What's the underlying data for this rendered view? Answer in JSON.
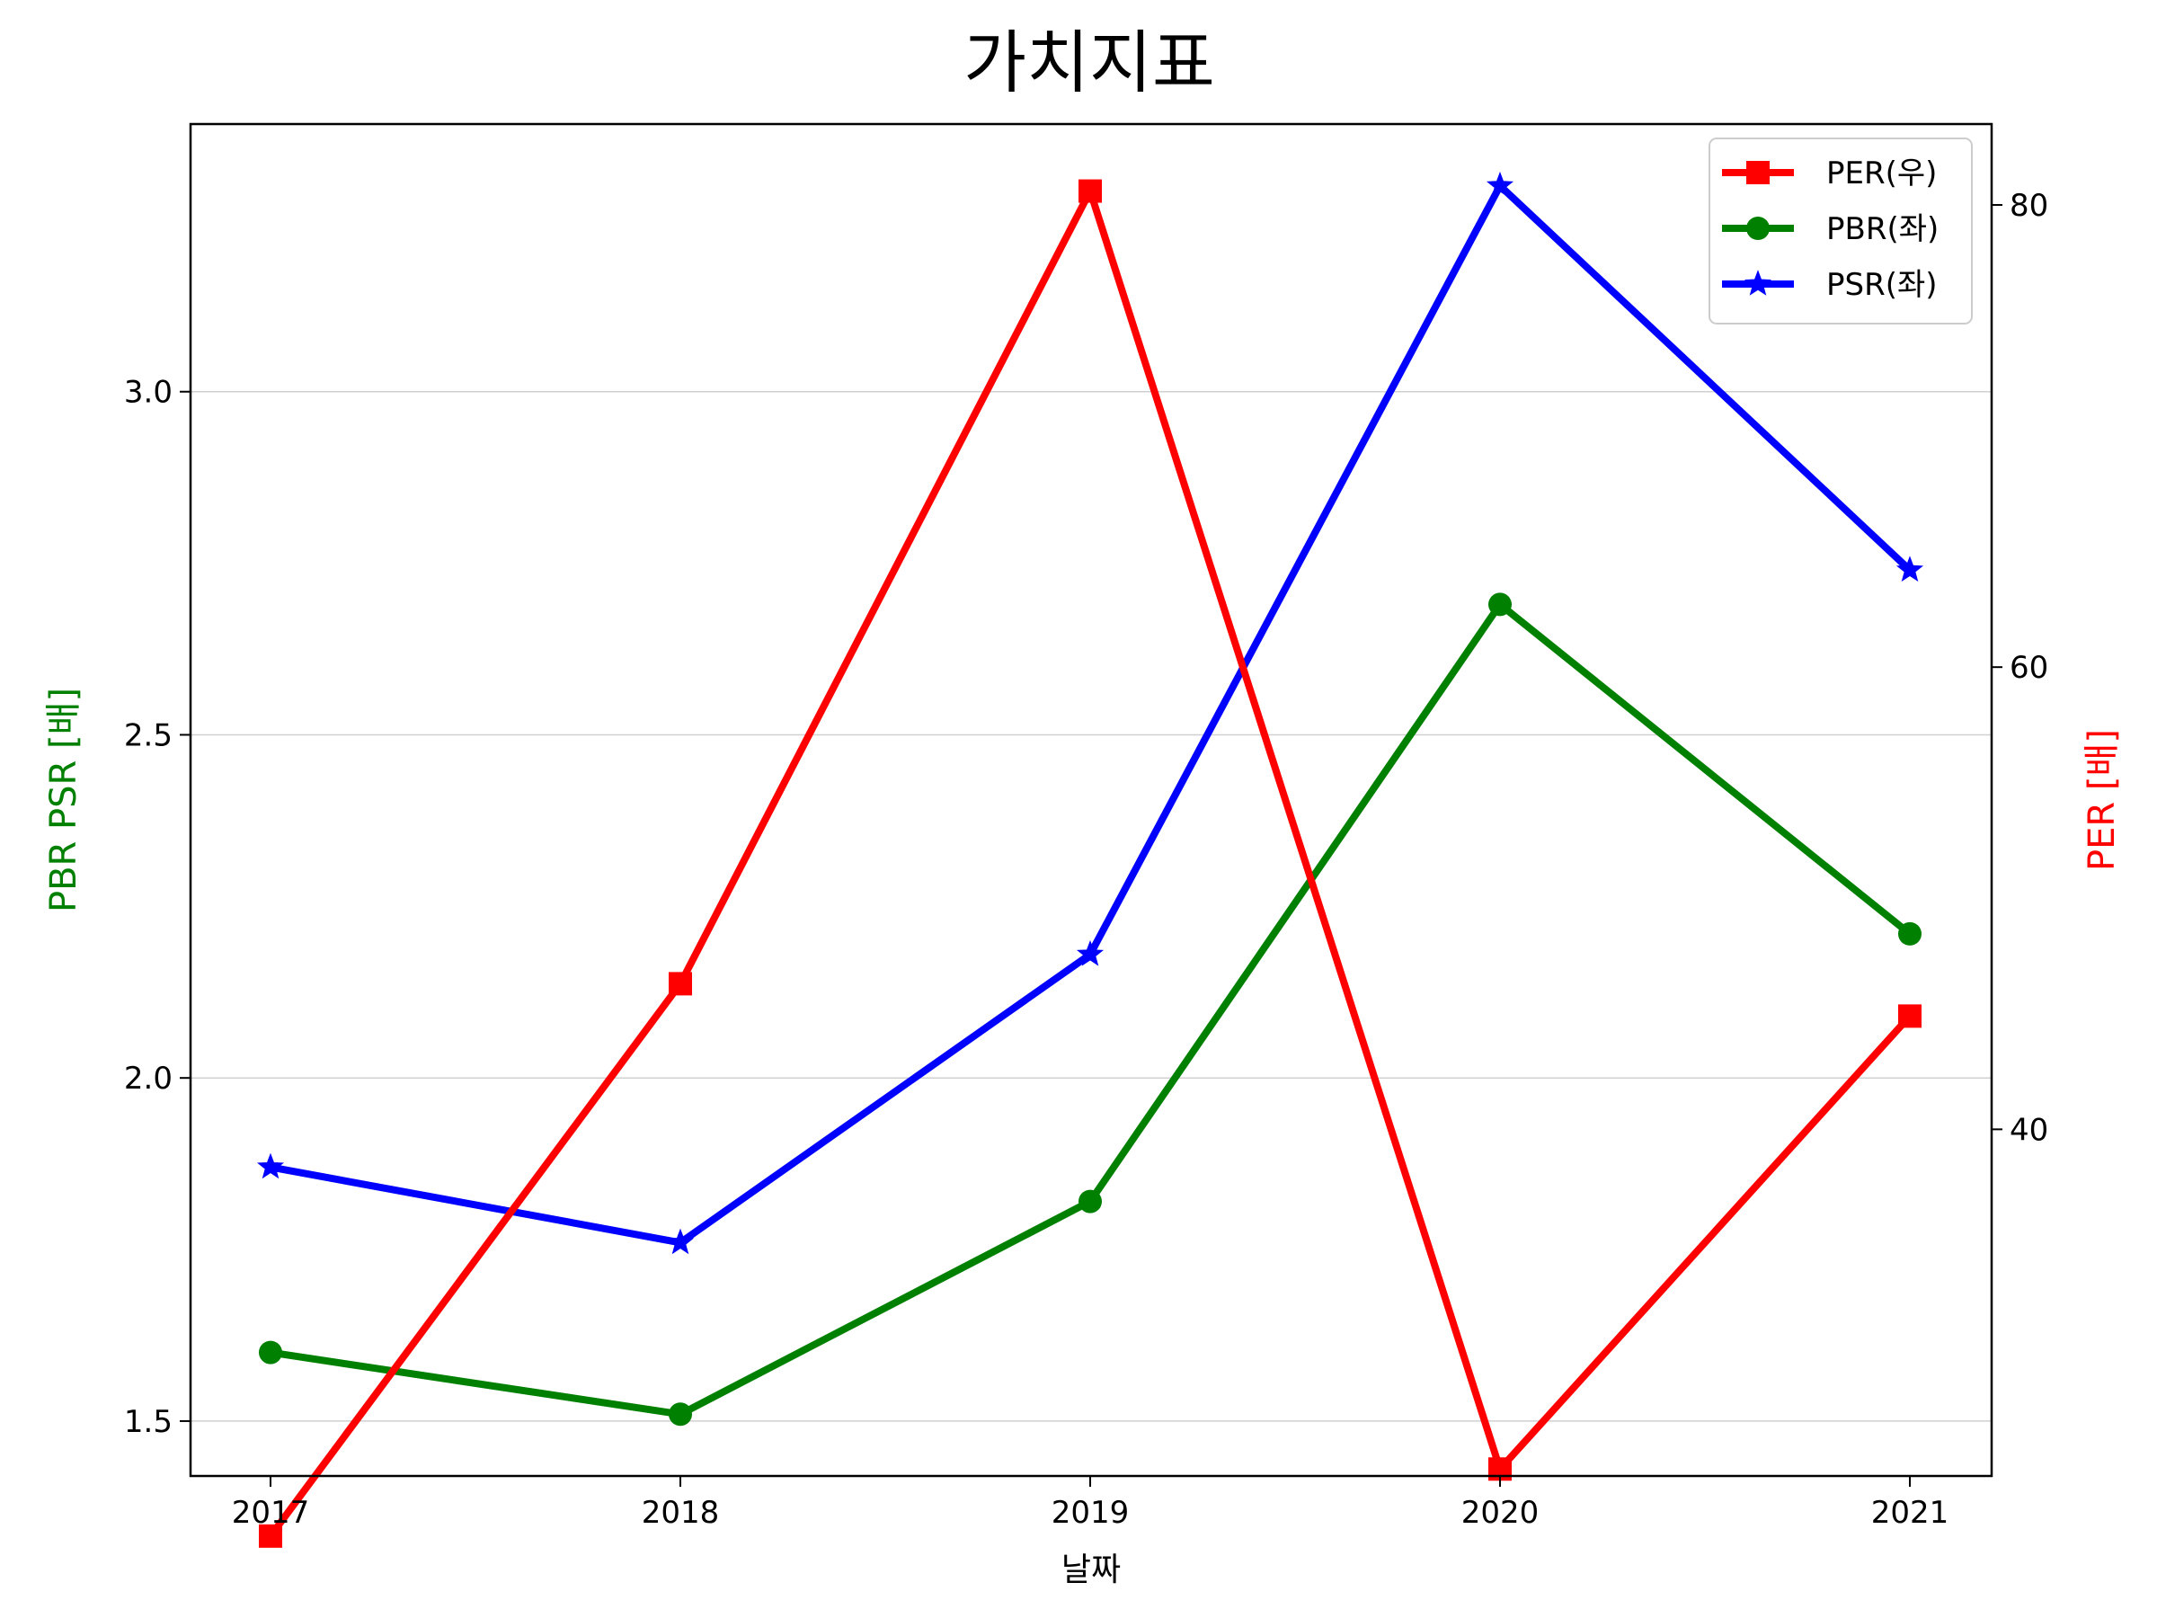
{
  "chart_data": {
    "type": "line",
    "title": "가치지표",
    "xlabel": "날짜",
    "ylabel_left": "PBR PSR [배]",
    "ylabel_right": "PER [배]",
    "categories": [
      "2017",
      "2018",
      "2019",
      "2020",
      "2021"
    ],
    "left_axis": {
      "ylim": [
        1.42,
        3.39
      ],
      "ticks": [
        1.5,
        2.0,
        2.5,
        3.0
      ],
      "tick_labels": [
        "1.5",
        "2.0",
        "2.5",
        "3.0"
      ],
      "grid": true
    },
    "right_axis": {
      "ylim": [
        25.0,
        83.5
      ],
      "ticks": [
        40,
        60,
        80
      ],
      "tick_labels": [
        "40",
        "60",
        "80"
      ]
    },
    "series": [
      {
        "name": "PER(우)",
        "axis": "right",
        "color": "#ff0000",
        "marker": "square",
        "values": [
          22.4,
          46.3,
          80.6,
          25.3,
          44.9
        ]
      },
      {
        "name": "PBR(좌)",
        "axis": "left",
        "color": "#008000",
        "marker": "circle",
        "values": [
          1.6,
          1.51,
          1.82,
          2.69,
          2.21
        ]
      },
      {
        "name": "PSR(좌)",
        "axis": "left",
        "color": "#0000ff",
        "marker": "star",
        "values": [
          1.87,
          1.76,
          2.18,
          3.3,
          2.74
        ]
      }
    ],
    "legend_position": "top-right"
  }
}
